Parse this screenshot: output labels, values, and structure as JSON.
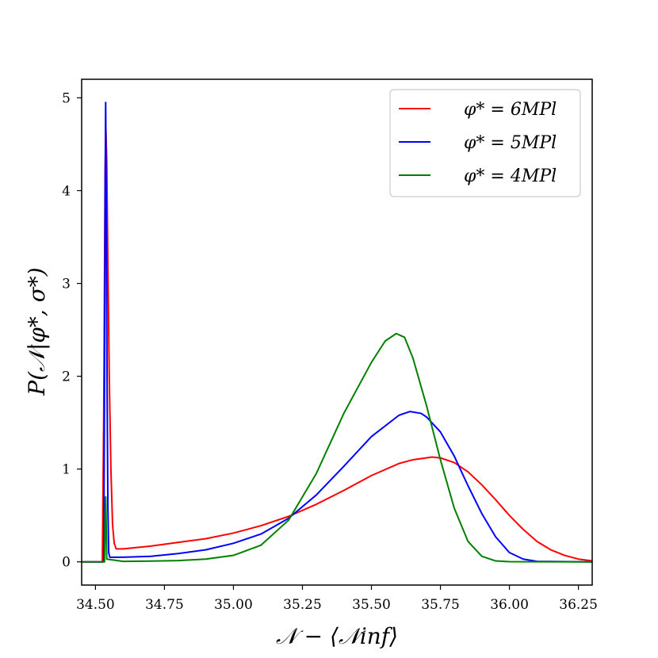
{
  "chart_data": {
    "type": "line",
    "title": "",
    "xlabel": "𝒩 − ⟨𝒩inf⟩",
    "ylabel": "P(𝒩|φ*, σ*)",
    "xlim": [
      34.45,
      36.3
    ],
    "ylim": [
      -0.25,
      5.2
    ],
    "xticks": [
      34.5,
      34.75,
      35.0,
      35.25,
      35.5,
      35.75,
      36.0,
      36.25
    ],
    "xtick_labels": [
      "34.50",
      "34.75",
      "35.00",
      "35.25",
      "35.50",
      "35.75",
      "36.00",
      "36.25"
    ],
    "yticks": [
      0,
      1,
      2,
      3,
      4,
      5
    ],
    "ytick_labels": [
      "0",
      "1",
      "2",
      "3",
      "4",
      "5"
    ],
    "grid": false,
    "legend_position": "top-right",
    "series": [
      {
        "name": "φ* = 6MPl",
        "color": "#ff0000",
        "points": [
          [
            34.45,
            0
          ],
          [
            34.525,
            0
          ],
          [
            34.53,
            1.6
          ],
          [
            34.535,
            4.2
          ],
          [
            34.538,
            4.65
          ],
          [
            34.541,
            4.3
          ],
          [
            34.545,
            3.2
          ],
          [
            34.55,
            2.0
          ],
          [
            34.556,
            1.0
          ],
          [
            34.562,
            0.4
          ],
          [
            34.568,
            0.2
          ],
          [
            34.575,
            0.14
          ],
          [
            34.6,
            0.14
          ],
          [
            34.7,
            0.17
          ],
          [
            34.8,
            0.21
          ],
          [
            34.9,
            0.25
          ],
          [
            35.0,
            0.31
          ],
          [
            35.1,
            0.39
          ],
          [
            35.2,
            0.49
          ],
          [
            35.3,
            0.62
          ],
          [
            35.4,
            0.77
          ],
          [
            35.5,
            0.93
          ],
          [
            35.6,
            1.06
          ],
          [
            35.65,
            1.1
          ],
          [
            35.72,
            1.13
          ],
          [
            35.75,
            1.12
          ],
          [
            35.8,
            1.07
          ],
          [
            35.85,
            0.97
          ],
          [
            35.9,
            0.83
          ],
          [
            35.95,
            0.67
          ],
          [
            36.0,
            0.5
          ],
          [
            36.05,
            0.35
          ],
          [
            36.1,
            0.22
          ],
          [
            36.15,
            0.13
          ],
          [
            36.2,
            0.07
          ],
          [
            36.25,
            0.03
          ],
          [
            36.3,
            0.01
          ]
        ]
      },
      {
        "name": "φ* = 5MPl",
        "color": "#0000ff",
        "points": [
          [
            34.45,
            0
          ],
          [
            34.53,
            0
          ],
          [
            34.533,
            2.0
          ],
          [
            34.535,
            4.0
          ],
          [
            34.537,
            4.95
          ],
          [
            34.539,
            4.0
          ],
          [
            34.542,
            2.0
          ],
          [
            34.545,
            0.6
          ],
          [
            34.548,
            0.1
          ],
          [
            34.552,
            0.05
          ],
          [
            34.6,
            0.05
          ],
          [
            34.7,
            0.06
          ],
          [
            34.8,
            0.09
          ],
          [
            34.9,
            0.13
          ],
          [
            35.0,
            0.2
          ],
          [
            35.1,
            0.3
          ],
          [
            35.2,
            0.47
          ],
          [
            35.3,
            0.72
          ],
          [
            35.4,
            1.03
          ],
          [
            35.5,
            1.35
          ],
          [
            35.6,
            1.58
          ],
          [
            35.64,
            1.62
          ],
          [
            35.68,
            1.6
          ],
          [
            35.7,
            1.56
          ],
          [
            35.75,
            1.4
          ],
          [
            35.8,
            1.14
          ],
          [
            35.85,
            0.82
          ],
          [
            35.9,
            0.52
          ],
          [
            35.95,
            0.27
          ],
          [
            36.0,
            0.1
          ],
          [
            36.05,
            0.03
          ],
          [
            36.1,
            0.005
          ],
          [
            36.3,
            0
          ]
        ]
      },
      {
        "name": "φ* = 4MPl",
        "color": "#008000",
        "points": [
          [
            34.45,
            0
          ],
          [
            34.533,
            0
          ],
          [
            34.535,
            0.5
          ],
          [
            34.537,
            0.7
          ],
          [
            34.539,
            0.4
          ],
          [
            34.541,
            0.03
          ],
          [
            34.6,
            0.005
          ],
          [
            34.7,
            0.008
          ],
          [
            34.8,
            0.014
          ],
          [
            34.9,
            0.03
          ],
          [
            35.0,
            0.07
          ],
          [
            35.1,
            0.18
          ],
          [
            35.2,
            0.45
          ],
          [
            35.3,
            0.95
          ],
          [
            35.4,
            1.6
          ],
          [
            35.5,
            2.15
          ],
          [
            35.55,
            2.38
          ],
          [
            35.59,
            2.46
          ],
          [
            35.62,
            2.42
          ],
          [
            35.65,
            2.2
          ],
          [
            35.7,
            1.68
          ],
          [
            35.75,
            1.1
          ],
          [
            35.8,
            0.58
          ],
          [
            35.85,
            0.22
          ],
          [
            35.9,
            0.06
          ],
          [
            35.95,
            0.01
          ],
          [
            36.0,
            0.002
          ],
          [
            36.3,
            0
          ]
        ]
      }
    ]
  }
}
